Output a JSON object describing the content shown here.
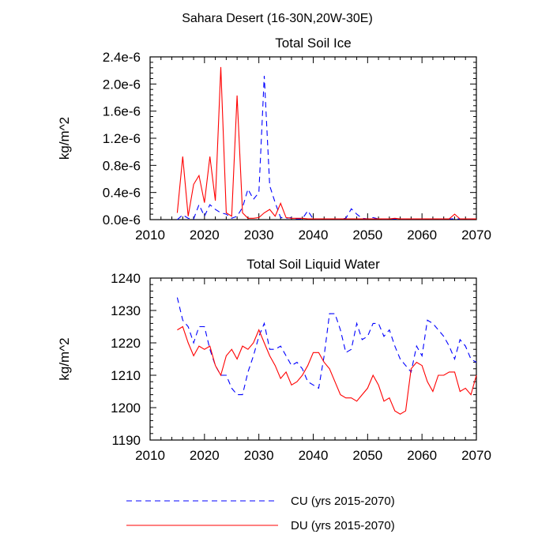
{
  "figure_title": "Sahara Desert (16-30N,20W-30E)",
  "legend": [
    {
      "label": "CU (yrs 2015-2070)",
      "color": "#0000ff",
      "dash": "dashed"
    },
    {
      "label": "DU (yrs 2015-2070)",
      "color": "#ff0000",
      "dash": "solid"
    }
  ],
  "chart_data": [
    {
      "type": "line",
      "title": "Total Soil Ice",
      "ylabel": "kg/m^2",
      "xlabel": "",
      "xlim": [
        2010,
        2070
      ],
      "ylim": [
        0,
        2.4e-06
      ],
      "xticks": [
        2010,
        2020,
        2030,
        2040,
        2050,
        2060,
        2070
      ],
      "yticks": [
        0,
        4e-07,
        8e-07,
        1.2e-06,
        1.6e-06,
        2e-06,
        2.4e-06
      ],
      "ytick_labels": [
        "0.0e-6",
        "0.4e-6",
        "0.8e-6",
        "1.2e-6",
        "1.6e-6",
        "2.0e-6",
        "2.4e-6"
      ],
      "x": [
        2015,
        2016,
        2017,
        2018,
        2019,
        2020,
        2021,
        2022,
        2023,
        2024,
        2025,
        2026,
        2027,
        2028,
        2029,
        2030,
        2031,
        2032,
        2033,
        2034,
        2035,
        2036,
        2037,
        2038,
        2039,
        2040,
        2041,
        2042,
        2043,
        2044,
        2045,
        2046,
        2047,
        2048,
        2049,
        2050,
        2051,
        2052,
        2053,
        2054,
        2055,
        2056,
        2057,
        2058,
        2059,
        2060,
        2061,
        2062,
        2063,
        2064,
        2065,
        2066,
        2067,
        2068,
        2069,
        2070
      ],
      "series": [
        {
          "name": "CU",
          "values": [
            0.0,
            7e-08,
            2e-08,
            1e-08,
            2.2e-07,
            5e-08,
            2.2e-07,
            1.5e-07,
            1e-07,
            8e-08,
            2e-08,
            5e-08,
            1.8e-07,
            4.5e-07,
            3e-07,
            4e-07,
            2.12e-06,
            5e-07,
            2.5e-07,
            3e-08,
            2e-08,
            3e-08,
            1e-08,
            1e-08,
            1.3e-07,
            1e-08,
            1e-08,
            1e-08,
            1e-08,
            1e-08,
            1e-08,
            2e-08,
            1.6e-07,
            8e-08,
            2e-08,
            1e-08,
            3e-08,
            1e-08,
            1e-08,
            1e-08,
            1e-08,
            1e-08,
            1e-08,
            1e-08,
            1e-08,
            1e-08,
            1e-08,
            1e-08,
            1e-08,
            1e-08,
            1e-08,
            1e-08,
            1e-08,
            1e-08,
            1e-08,
            1e-08
          ]
        },
        {
          "name": "DU",
          "values": [
            1e-07,
            9.3e-07,
            5e-08,
            5.2e-07,
            6.5e-07,
            2.5e-07,
            9.3e-07,
            2.8e-07,
            2.25e-06,
            1e-07,
            5e-08,
            1.83e-06,
            1e-07,
            2e-08,
            2e-08,
            3e-08,
            1e-07,
            1.5e-07,
            5e-08,
            2.4e-07,
            3e-08,
            2e-08,
            2e-08,
            2e-08,
            1e-08,
            1e-08,
            1e-08,
            1e-08,
            1e-08,
            1e-08,
            1e-08,
            1e-08,
            1e-08,
            1e-08,
            1e-08,
            1e-08,
            1e-08,
            1e-08,
            1e-08,
            1e-08,
            2e-08,
            1e-08,
            1e-08,
            1e-08,
            1e-08,
            1e-08,
            1e-08,
            1e-08,
            1e-08,
            1e-08,
            1e-08,
            8e-08,
            1e-08,
            1e-08,
            1e-08,
            1e-08
          ]
        }
      ]
    },
    {
      "type": "line",
      "title": "Total Soil Liquid Water",
      "ylabel": "kg/m^2",
      "xlabel": "",
      "xlim": [
        2010,
        2070
      ],
      "ylim": [
        1190,
        1240
      ],
      "xticks": [
        2010,
        2020,
        2030,
        2040,
        2050,
        2060,
        2070
      ],
      "yticks": [
        1190,
        1200,
        1210,
        1220,
        1230,
        1240
      ],
      "ytick_labels": [
        "1190",
        "1200",
        "1210",
        "1220",
        "1230",
        "1240"
      ],
      "x": [
        2015,
        2016,
        2017,
        2018,
        2019,
        2020,
        2021,
        2022,
        2023,
        2024,
        2025,
        2026,
        2027,
        2028,
        2029,
        2030,
        2031,
        2032,
        2033,
        2034,
        2035,
        2036,
        2037,
        2038,
        2039,
        2040,
        2041,
        2042,
        2043,
        2044,
        2045,
        2046,
        2047,
        2048,
        2049,
        2050,
        2051,
        2052,
        2053,
        2054,
        2055,
        2056,
        2057,
        2058,
        2059,
        2060,
        2061,
        2062,
        2063,
        2064,
        2065,
        2066,
        2067,
        2068,
        2069,
        2070
      ],
      "series": [
        {
          "name": "CU",
          "values": [
            1234,
            1227,
            1225,
            1220,
            1225,
            1225,
            1218,
            1213,
            1210,
            1210,
            1206,
            1204,
            1204,
            1211,
            1216,
            1222,
            1226,
            1218,
            1218,
            1219,
            1216,
            1213,
            1214,
            1212,
            1208,
            1207,
            1206,
            1216,
            1229,
            1229,
            1224,
            1217,
            1218,
            1226,
            1221,
            1222,
            1226,
            1226,
            1222,
            1224,
            1219,
            1215,
            1213,
            1211,
            1219,
            1216,
            1227,
            1226,
            1224,
            1222,
            1219,
            1215,
            1221,
            1219,
            1215,
            1214
          ]
        },
        {
          "name": "DU",
          "values": [
            1224,
            1225,
            1220,
            1216,
            1219,
            1218,
            1219,
            1213,
            1210,
            1216,
            1218,
            1215,
            1219,
            1218,
            1220,
            1224,
            1220,
            1216,
            1213,
            1209,
            1211,
            1207,
            1208,
            1210,
            1213,
            1217,
            1217,
            1214,
            1212,
            1208,
            1204,
            1203,
            1203,
            1202,
            1204,
            1206,
            1210,
            1207,
            1202,
            1203,
            1199,
            1198,
            1199,
            1212,
            1214,
            1213,
            1208,
            1205,
            1210,
            1210,
            1211,
            1211,
            1205,
            1206,
            1204,
            1210
          ]
        }
      ]
    }
  ]
}
